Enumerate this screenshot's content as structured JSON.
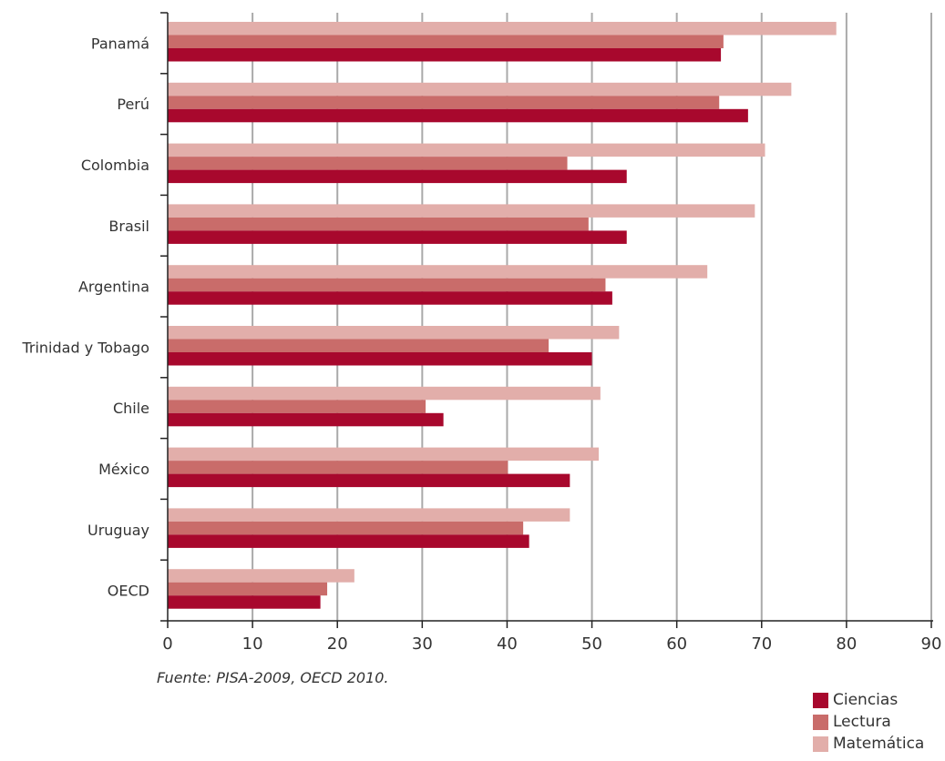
{
  "chart_data": {
    "type": "bar",
    "orientation": "horizontal",
    "categories": [
      "Panamá",
      "Perú",
      "Colombia",
      "Brasil",
      "Argentina",
      "Trinidad y Tobago",
      "Chile",
      "México",
      "Uruguay",
      "OECD"
    ],
    "series": [
      {
        "name": "Matemática",
        "color": "#e2aeaa",
        "values": [
          78.8,
          73.5,
          70.4,
          69.2,
          63.6,
          53.2,
          51.0,
          50.8,
          47.4,
          22.0
        ]
      },
      {
        "name": "Lectura",
        "color": "#c96c6a",
        "values": [
          65.5,
          65.0,
          47.1,
          49.6,
          51.6,
          44.9,
          30.4,
          40.1,
          41.9,
          18.8
        ]
      },
      {
        "name": "Ciencias",
        "color": "#a8082d",
        "values": [
          65.2,
          68.4,
          54.1,
          54.1,
          52.4,
          50.0,
          32.5,
          47.4,
          42.6,
          18.0
        ]
      }
    ],
    "xlim": [
      0,
      90
    ],
    "xticks": [
      0,
      10,
      20,
      30,
      40,
      50,
      60,
      70,
      80,
      90
    ],
    "grid": true,
    "legend_position": "bottom-right",
    "source": "Fuente: PISA-2009, OECD 2010."
  },
  "legend": [
    {
      "label": "Ciencias",
      "color": "#a8082d"
    },
    {
      "label": "Lectura",
      "color": "#c96c6a"
    },
    {
      "label": "Matemática",
      "color": "#e2aeaa"
    }
  ]
}
